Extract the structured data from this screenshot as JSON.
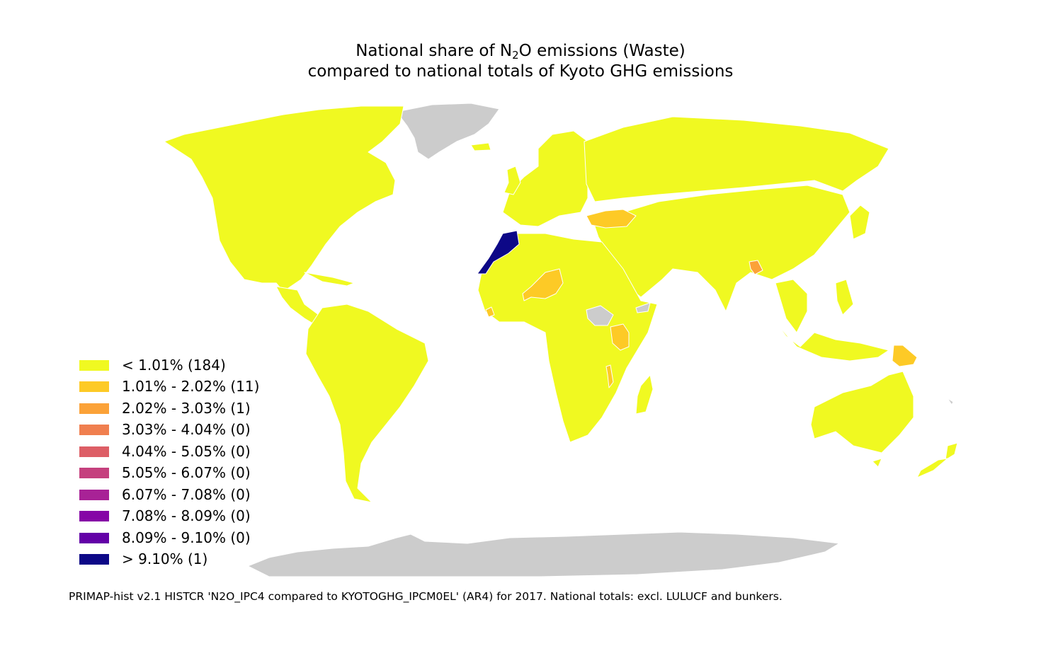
{
  "title": {
    "line1_prefix": "National share of N",
    "line1_sub": "2",
    "line1_suffix": "O emissions (Waste)",
    "line2": "compared to national totals of Kyoto GHG emissions"
  },
  "legend": [
    {
      "label": "< 1.01% (184)",
      "color": "#f0f921"
    },
    {
      "label": "1.01% - 2.02% (11)",
      "color": "#fdca26"
    },
    {
      "label": "2.02% - 3.03% (1)",
      "color": "#fba238"
    },
    {
      "label": "3.03% - 4.04% (0)",
      "color": "#f07f4f"
    },
    {
      "label": "4.04% - 5.05% (0)",
      "color": "#dd5e66"
    },
    {
      "label": "5.05% - 6.07% (0)",
      "color": "#c5407e"
    },
    {
      "label": "6.07% - 7.08% (0)",
      "color": "#a82296"
    },
    {
      "label": "7.08% - 8.09% (0)",
      "color": "#8606a6"
    },
    {
      "label": "8.09% - 9.10% (0)",
      "color": "#6300a7"
    },
    {
      "label": "> 9.10% (1)",
      "color": "#0d0887"
    }
  ],
  "colors": {
    "no_data": "#cccccc",
    "border": "#ffffff"
  },
  "footnote": "PRIMAP-hist v2.1 HISTCR 'N2O_IPC4 compared to KYOTOGHG_IPCM0EL' (AR4) for 2017. National totals: excl. LULUCF and bunkers."
}
